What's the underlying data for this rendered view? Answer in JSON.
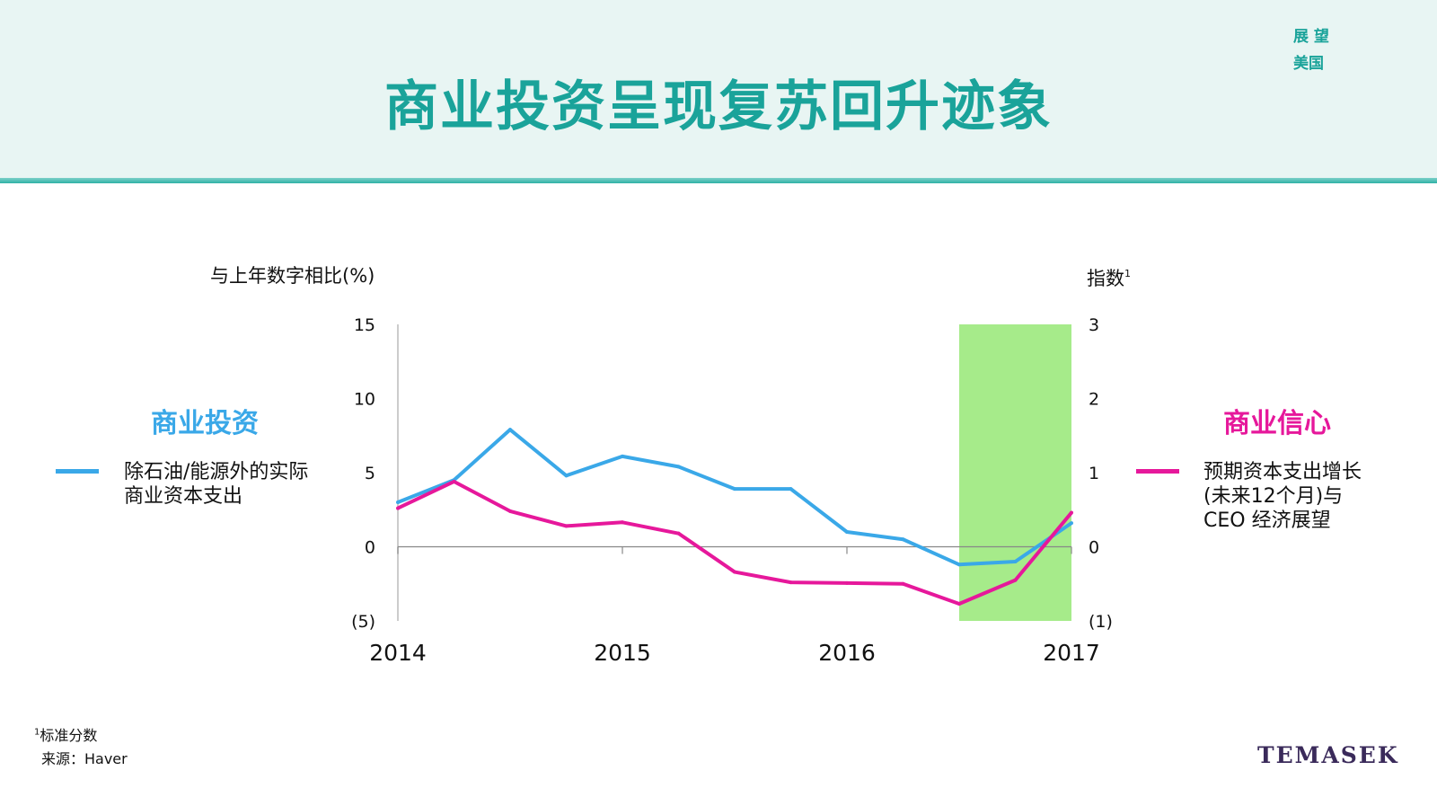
{
  "header": {
    "title": "商业投资呈现复苏回升迹象",
    "corner_line1": "展 望",
    "corner_line2": "美国"
  },
  "chart_data": {
    "type": "line",
    "x": [
      2014.0,
      2014.25,
      2014.5,
      2014.75,
      2015.0,
      2015.25,
      2015.5,
      2015.75,
      2016.0,
      2016.25,
      2016.5,
      2016.75,
      2017.0
    ],
    "x_ticks": [
      2014,
      2015,
      2016,
      2017
    ],
    "y_left": {
      "label": "与上年数字相比(%)",
      "range": [
        -5,
        15
      ],
      "ticks": [
        "15",
        "10",
        "5",
        "0",
        "(5)"
      ]
    },
    "y_right": {
      "label": "指数",
      "label_sup": "1",
      "range": [
        -1,
        3
      ],
      "ticks": [
        "3",
        "2",
        "1",
        "0",
        "(1)"
      ]
    },
    "series": [
      {
        "key": "investment",
        "name_title": "商业投资",
        "name_line1": "除石油/能源外的实际",
        "name_line2": "商业资本支出",
        "axis": "left",
        "color": "#3aa8e8",
        "values": [
          3.0,
          4.5,
          7.9,
          4.8,
          6.1,
          5.4,
          3.9,
          3.9,
          1.0,
          0.5,
          -1.2,
          -1.0,
          1.6
        ]
      },
      {
        "key": "confidence",
        "name_title": "商业信心",
        "name_line1": "预期资本支出增长",
        "name_line2": "(未来12个月)与",
        "name_line3": "CEO 经济展望",
        "axis": "right",
        "color": "#e6189b",
        "values": [
          0.52,
          0.88,
          0.48,
          0.28,
          0.33,
          0.18,
          -0.34,
          -0.48,
          -0.49,
          -0.5,
          -0.77,
          -0.45,
          0.46
        ]
      }
    ],
    "highlight": {
      "x_start": 2016.5,
      "x_end": 2017.0,
      "color": "#a6eb8a"
    }
  },
  "footnotes": {
    "note_sup": "1",
    "note": "标准分数",
    "source": "来源：Haver"
  },
  "brand": "TEMASEK"
}
